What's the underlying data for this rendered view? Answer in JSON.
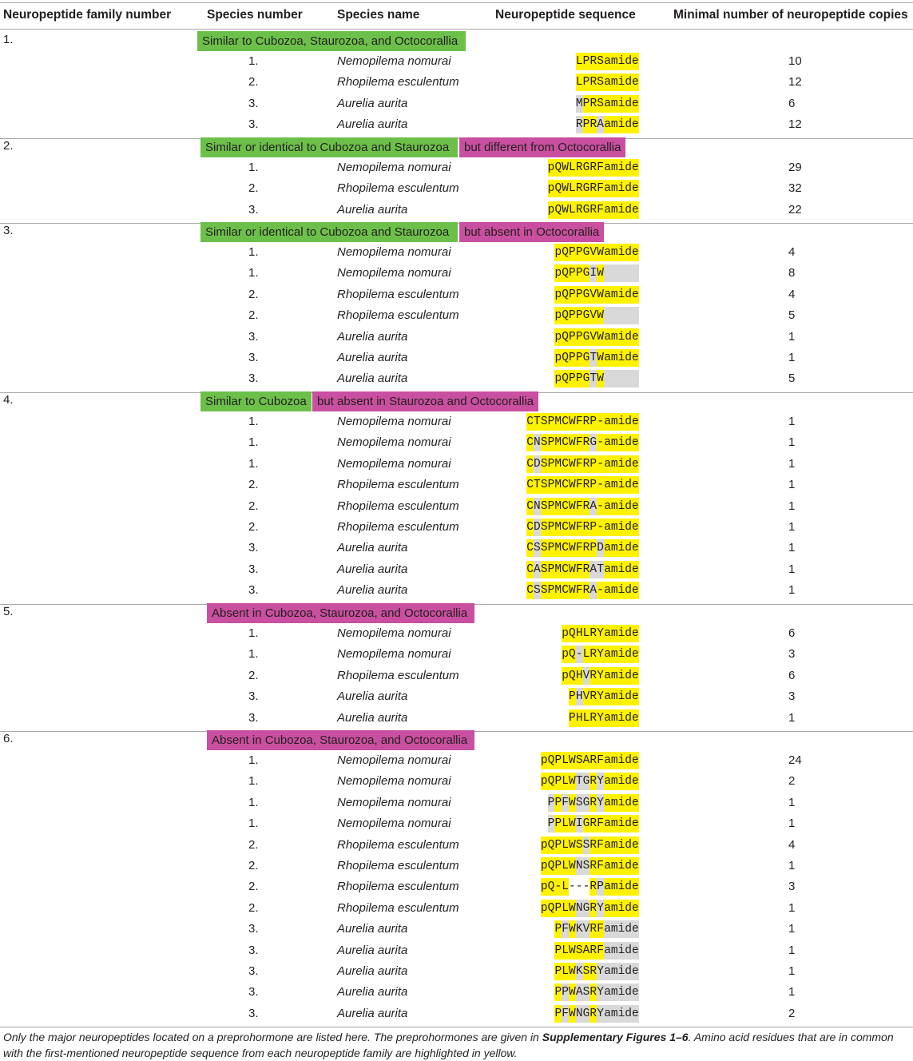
{
  "headers": {
    "family": "Neuropeptide family number",
    "species_number": "Species number",
    "species_name": "Species name",
    "sequence": "Neuropeptide sequence",
    "copies": "Minimal number of neuropeptide copies"
  },
  "families": [
    {
      "number": "1.",
      "tags": [
        {
          "text": "Similar to Cubozoa, Staurozoa, and Octocorallia",
          "color": "#6cc04a"
        }
      ],
      "rows": [
        {
          "sp": "1.",
          "name": "Nemopilema nomurai",
          "seq": [
            "L",
            "P",
            "R",
            "S"
          ],
          "hl": "yyyy",
          "tail": "amide",
          "tailhl": "y",
          "copies": "10"
        },
        {
          "sp": "2.",
          "name": "Rhopilema esculentum",
          "seq": [
            "L",
            "P",
            "R",
            "S"
          ],
          "hl": "yyyy",
          "tail": "amide",
          "tailhl": "y",
          "copies": "12"
        },
        {
          "sp": "3.",
          "name": "Aurelia aurita",
          "seq": [
            "M",
            "P",
            "R",
            "S"
          ],
          "hl": "gyyy",
          "tail": "amide",
          "tailhl": "y",
          "copies": "6"
        },
        {
          "sp": "3.",
          "name": "Aurelia aurita",
          "seq": [
            "R",
            "P",
            "R",
            "A"
          ],
          "hl": "gyyg",
          "tail": "amide",
          "tailhl": "y",
          "copies": "12"
        }
      ]
    },
    {
      "number": "2.",
      "tags": [
        {
          "text": "Similar or identical to Cubozoa and Staurozoa",
          "color": "#6cc04a"
        },
        {
          "text": "but different from Octocorallia",
          "color": "#c94fa0"
        }
      ],
      "rows": [
        {
          "sp": "1.",
          "name": "Nemopilema nomurai",
          "seq": [
            "p",
            "Q",
            "W",
            "L",
            "R",
            "G",
            "R",
            "F"
          ],
          "hl": "yyyyyyyy",
          "tail": "amide",
          "tailhl": "y",
          "copies": "29"
        },
        {
          "sp": "2.",
          "name": "Rhopilema esculentum",
          "seq": [
            "p",
            "Q",
            "W",
            "L",
            "R",
            "G",
            "R",
            "F"
          ],
          "hl": "yyyyyyyy",
          "tail": "amide",
          "tailhl": "y",
          "copies": "32"
        },
        {
          "sp": "3.",
          "name": "Aurelia aurita",
          "seq": [
            "p",
            "Q",
            "W",
            "L",
            "R",
            "G",
            "R",
            "F"
          ],
          "hl": "yyyyyyyy",
          "tail": "amide",
          "tailhl": "y",
          "copies": "22"
        }
      ]
    },
    {
      "number": "3.",
      "tags": [
        {
          "text": "Similar or identical to Cubozoa and Staurozoa",
          "color": "#6cc04a"
        },
        {
          "text": "but absent in Octocorallia",
          "color": "#c94fa0"
        }
      ],
      "rows": [
        {
          "sp": "1.",
          "name": "Nemopilema nomurai",
          "seq": [
            "p",
            "Q",
            "P",
            "P",
            "G",
            "V",
            "W"
          ],
          "hl": "yyyyyyy",
          "tail": "amide",
          "tailhl": "y",
          "copies": "4"
        },
        {
          "sp": "1.",
          "name": "Nemopilema nomurai",
          "seq": [
            "p",
            "Q",
            "P",
            "P",
            "G",
            "I",
            "W"
          ],
          "hl": "yyyyygy",
          "tail": "",
          "tailhl": "g",
          "copies": "8"
        },
        {
          "sp": "2.",
          "name": "Rhopilema esculentum",
          "seq": [
            "p",
            "Q",
            "P",
            "P",
            "G",
            "V",
            "W"
          ],
          "hl": "yyyyyyy",
          "tail": "amide",
          "tailhl": "y",
          "copies": "4"
        },
        {
          "sp": "2.",
          "name": "Rhopilema esculentum",
          "seq": [
            "p",
            "Q",
            "P",
            "P",
            "G",
            "V",
            "W"
          ],
          "hl": "yyyyyyy",
          "tail": "",
          "tailhl": "g",
          "copies": "5"
        },
        {
          "sp": "3.",
          "name": "Aurelia aurita",
          "seq": [
            "p",
            "Q",
            "P",
            "P",
            "G",
            "V",
            "W"
          ],
          "hl": "yyyyyyy",
          "tail": "amide",
          "tailhl": "y",
          "copies": "1"
        },
        {
          "sp": "3.",
          "name": "Aurelia aurita",
          "seq": [
            "p",
            "Q",
            "P",
            "P",
            "G",
            "T",
            "W"
          ],
          "hl": "yyyyygy",
          "tail": "amide",
          "tailhl": "y",
          "copies": "1"
        },
        {
          "sp": "3.",
          "name": "Aurelia aurita",
          "seq": [
            "p",
            "Q",
            "P",
            "P",
            "G",
            "T",
            "W"
          ],
          "hl": "yyyyygy",
          "tail": "",
          "tailhl": "g",
          "copies": "5"
        }
      ]
    },
    {
      "number": "4.",
      "tags": [
        {
          "text": "Similar to Cubozoa",
          "color": "#6cc04a"
        },
        {
          "text": "but absent in Staurozoa and Octocorallia",
          "color": "#c94fa0"
        }
      ],
      "rows": [
        {
          "sp": "1.",
          "name": "Nemopilema nomurai",
          "seq": [
            "C",
            "T",
            "S",
            "P",
            "M",
            "C",
            "W",
            "F",
            "R",
            "P",
            "-"
          ],
          "hl": "yyyyyyyyyyy",
          "tail": "amide",
          "tailhl": "y",
          "copies": "1"
        },
        {
          "sp": "1.",
          "name": "Nemopilema nomurai",
          "seq": [
            "C",
            "N",
            "S",
            "P",
            "M",
            "C",
            "W",
            "F",
            "R",
            "G",
            "-"
          ],
          "hl": "ygyyyyyyygy",
          "tail": "amide",
          "tailhl": "y",
          "copies": "1"
        },
        {
          "sp": "1.",
          "name": "Nemopilema nomurai",
          "seq": [
            "C",
            "D",
            "S",
            "P",
            "M",
            "C",
            "W",
            "F",
            "R",
            "P",
            "-"
          ],
          "hl": "ygyyyyyyyyy",
          "tail": "amide",
          "tailhl": "y",
          "copies": "1"
        },
        {
          "sp": "2.",
          "name": "Rhopilema esculentum",
          "seq": [
            "C",
            "T",
            "S",
            "P",
            "M",
            "C",
            "W",
            "F",
            "R",
            "P",
            "-"
          ],
          "hl": "yyyyyyyyyyy",
          "tail": "amide",
          "tailhl": "y",
          "copies": "1"
        },
        {
          "sp": "2.",
          "name": "Rhopilema esculentum",
          "seq": [
            "C",
            "N",
            "S",
            "P",
            "M",
            "C",
            "W",
            "F",
            "R",
            "A",
            "-"
          ],
          "hl": "ygyyyyyyygy",
          "tail": "amide",
          "tailhl": "y",
          "copies": "1"
        },
        {
          "sp": "2.",
          "name": "Rhopilema esculentum",
          "seq": [
            "C",
            "D",
            "S",
            "P",
            "M",
            "C",
            "W",
            "F",
            "R",
            "P",
            "-"
          ],
          "hl": "ygyyyyyyyyy",
          "tail": "amide",
          "tailhl": "y",
          "copies": "1"
        },
        {
          "sp": "3.",
          "name": "Aurelia aurita",
          "seq": [
            "C",
            "S",
            "S",
            "P",
            "M",
            "C",
            "W",
            "F",
            "R",
            "P",
            "D"
          ],
          "hl": "ygyyyyyyyyg",
          "tail": "amide",
          "tailhl": "y",
          "copies": "1"
        },
        {
          "sp": "3.",
          "name": "Aurelia aurita",
          "seq": [
            "C",
            "A",
            "S",
            "P",
            "M",
            "C",
            "W",
            "F",
            "R",
            "A",
            "T"
          ],
          "hl": "ygyyyyyyygg",
          "tail": "amide",
          "tailhl": "y",
          "copies": "1"
        },
        {
          "sp": "3.",
          "name": "Aurelia aurita",
          "seq": [
            "C",
            "S",
            "S",
            "P",
            "M",
            "C",
            "W",
            "F",
            "R",
            "A",
            "-"
          ],
          "hl": "ygyyyyyyygy",
          "tail": "amide",
          "tailhl": "y",
          "copies": "1"
        }
      ]
    },
    {
      "number": "5.",
      "tags": [
        {
          "text": "Absent in Cubozoa, Staurozoa, and Octocorallia",
          "color": "#c94fa0"
        }
      ],
      "rows": [
        {
          "sp": "1.",
          "name": "Nemopilema nomurai",
          "seq": [
            "p",
            "Q",
            "H",
            "L",
            "R",
            "Y"
          ],
          "hl": "yyyyyy",
          "tail": "amide",
          "tailhl": "y",
          "copies": "6"
        },
        {
          "sp": "1.",
          "name": "Nemopilema nomurai",
          "seq": [
            "p",
            "Q",
            "-",
            "L",
            "R",
            "Y"
          ],
          "hl": "yygyyy",
          "tail": "amide",
          "tailhl": "y",
          "copies": "3"
        },
        {
          "sp": "2.",
          "name": "Rhopilema esculentum",
          "seq": [
            "p",
            "Q",
            "H",
            "V",
            "R",
            "Y"
          ],
          "hl": "yyygyy",
          "tail": "amide",
          "tailhl": "y",
          "copies": "6"
        },
        {
          "sp": "3.",
          "name": "Aurelia aurita",
          "seq": [
            "P",
            "H",
            "V",
            "R",
            "Y"
          ],
          "hl": "nygyy",
          "tail": "amide",
          "tailhl": "y",
          "copies": "3"
        },
        {
          "sp": "3.",
          "name": "Aurelia aurita",
          "seq": [
            "P",
            "H",
            "L",
            "R",
            "Y"
          ],
          "hl": "nyyyy",
          "tail": "amide",
          "tailhl": "y",
          "copies": "1"
        }
      ]
    },
    {
      "number": "6.",
      "tags": [
        {
          "text": "Absent in Cubozoa, Staurozoa, and Octocorallia",
          "color": "#c94fa0"
        }
      ],
      "rows": [
        {
          "sp": "1.",
          "name": "Nemopilema nomurai",
          "seq": [
            "p",
            "Q",
            "P",
            "L",
            "W",
            "S",
            "A",
            "R",
            "F"
          ],
          "hl": "yyyyyyyyy",
          "tail": "amide",
          "tailhl": "y",
          "copies": "24"
        },
        {
          "sp": "1.",
          "name": "Nemopilema nomurai",
          "seq": [
            "p",
            "Q",
            "P",
            "L",
            "W",
            "T",
            "G",
            "R",
            "Y"
          ],
          "hl": "yyyyyggyg",
          "tail": "amide",
          "tailhl": "y",
          "copies": "2"
        },
        {
          "sp": "1.",
          "name": "Nemopilema nomurai",
          "seq": [
            "P",
            "P",
            "F",
            "W",
            "S",
            "G",
            "R",
            "Y"
          ],
          "hl": "ngygyggyg",
          "tail": "amide",
          "tailhl": "y",
          "copies": "1"
        },
        {
          "sp": "1.",
          "name": "Nemopilema nomurai",
          "seq": [
            "P",
            "P",
            "L",
            "W",
            "I",
            "G",
            "R",
            "F"
          ],
          "hl": "ngyyygyyy",
          "tail": "amide",
          "tailhl": "y",
          "copies": "1"
        },
        {
          "sp": "2.",
          "name": "Rhopilema esculentum",
          "seq": [
            "p",
            "Q",
            "P",
            "L",
            "W",
            "S",
            "S",
            "R",
            "F"
          ],
          "hl": "yyyyyygyy",
          "tail": "amide",
          "tailhl": "y",
          "copies": "4"
        },
        {
          "sp": "2.",
          "name": "Rhopilema esculentum",
          "seq": [
            "p",
            "Q",
            "P",
            "L",
            "W",
            "N",
            "S",
            "R",
            "F"
          ],
          "hl": "yyyyyggyy",
          "tail": "amide",
          "tailhl": "y",
          "copies": "1"
        },
        {
          "sp": "2.",
          "name": "Rhopilema esculentum",
          "seq": [
            "p",
            "Q",
            "-",
            "L",
            "-",
            "-",
            "-",
            "R",
            "P"
          ],
          "hl": "yyyynnnyg",
          "tail": "amide",
          "tailhl": "y",
          "copies": "3"
        },
        {
          "sp": "2.",
          "name": "Rhopilema esculentum",
          "seq": [
            "p",
            "Q",
            "P",
            "L",
            "W",
            "N",
            "G",
            "R",
            "Y"
          ],
          "hl": "yyyyyggyg",
          "tail": "amide",
          "tailhl": "y",
          "copies": "1"
        },
        {
          "sp": "3.",
          "name": "Aurelia aurita",
          "seq": [
            "P",
            "F",
            "W",
            "K",
            "V",
            "R",
            "F"
          ],
          "hl": "nnygyggyy",
          "tail": "amide",
          "tailhl": "g",
          "copies": "1"
        },
        {
          "sp": "3.",
          "name": "Aurelia aurita",
          "seq": [
            "P",
            "L",
            "W",
            "S",
            "A",
            "R",
            "F"
          ],
          "hl": "nnyyyyyyy",
          "tail": "amide",
          "tailhl": "g",
          "copies": "1"
        },
        {
          "sp": "3.",
          "name": "Aurelia aurita",
          "seq": [
            "P",
            "L",
            "W",
            "K",
            "S",
            "R",
            "Y"
          ],
          "hl": "nnyyygyyg",
          "tail": "amide",
          "tailhl": "g",
          "copies": "1"
        },
        {
          "sp": "3.",
          "name": "Aurelia aurita",
          "seq": [
            "P",
            "P",
            "W",
            "A",
            "S",
            "R",
            "Y"
          ],
          "hl": "nnygyggyg",
          "tail": "amide",
          "tailhl": "g",
          "copies": "1"
        },
        {
          "sp": "3.",
          "name": "Aurelia aurita",
          "seq": [
            "P",
            "F",
            "W",
            "N",
            "G",
            "R",
            "Y"
          ],
          "hl": "nnygyggyg",
          "tail": "amide",
          "tailhl": "g",
          "copies": "2"
        }
      ]
    }
  ],
  "footnote": {
    "part1": "Only the major neuropeptides located on a preprohormone are listed here. The preprohormones are given in ",
    "bold": "Supplementary Figures 1–6",
    "part2": ". Amino acid residues that are in common with the first-mentioned neuropeptide sequence from each neuropeptide family are highlighted in yellow."
  }
}
